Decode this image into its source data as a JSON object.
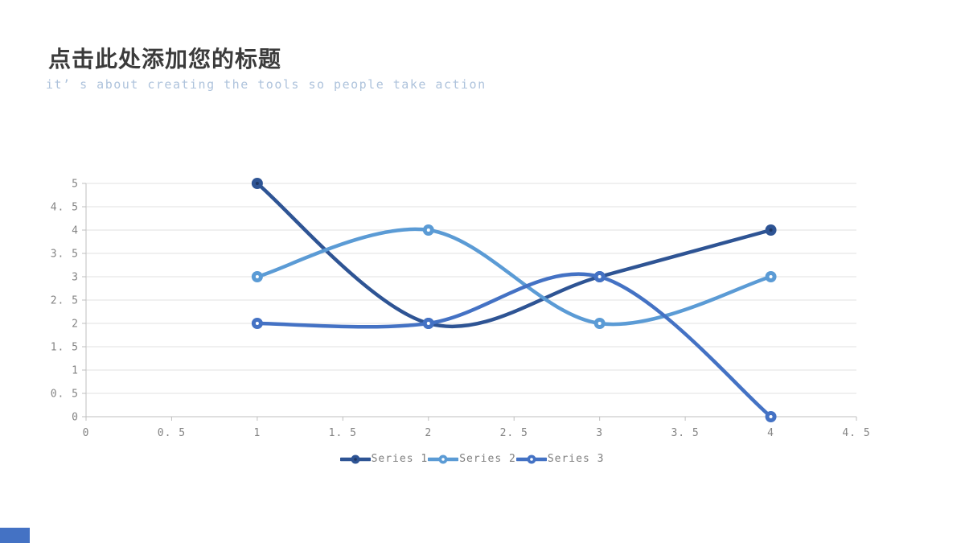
{
  "slide": {
    "title": "点击此处添加您的标题",
    "subtitle": "it’ s about creating the tools so people take action",
    "accent_bar_color": "#4472c4"
  },
  "chart_data": {
    "type": "line",
    "smooth": true,
    "grid": true,
    "legend_position": "bottom",
    "x": [
      1,
      2,
      3,
      4
    ],
    "series": [
      {
        "name": "Series 1",
        "values": [
          5,
          2,
          3,
          4
        ],
        "color": "#2e5494",
        "dot_color": "#1f3864"
      },
      {
        "name": "Series 2",
        "values": [
          3,
          4,
          2,
          3
        ],
        "color": "#5b9bd5",
        "dot_color": "#ffffff"
      },
      {
        "name": "Series 3",
        "values": [
          2,
          2,
          3,
          0
        ],
        "color": "#4472c4",
        "dot_color": "#ffffff"
      }
    ],
    "xlim": [
      0,
      4.5
    ],
    "ylim": [
      0,
      5
    ],
    "x_tick_values": [
      0,
      0.5,
      1,
      1.5,
      2,
      2.5,
      3,
      3.5,
      4,
      4.5
    ],
    "x_tick_labels": [
      "0",
      "0. 5",
      "1",
      "1. 5",
      "2",
      "2. 5",
      "3",
      "3. 5",
      "4",
      "4. 5"
    ],
    "y_tick_values": [
      0,
      0.5,
      1,
      1.5,
      2,
      2.5,
      3,
      3.5,
      4,
      4.5,
      5
    ],
    "y_tick_labels": [
      "0",
      "0. 5",
      "1",
      "1. 5",
      "2",
      "2. 5",
      "3",
      "3. 5",
      "4",
      "4. 5",
      "5"
    ],
    "axis_color": "#bfbfbf",
    "grid_color": "#e2e2e2",
    "tick_label_color": "#848484",
    "legend_text_color": "#7f7f7f"
  }
}
